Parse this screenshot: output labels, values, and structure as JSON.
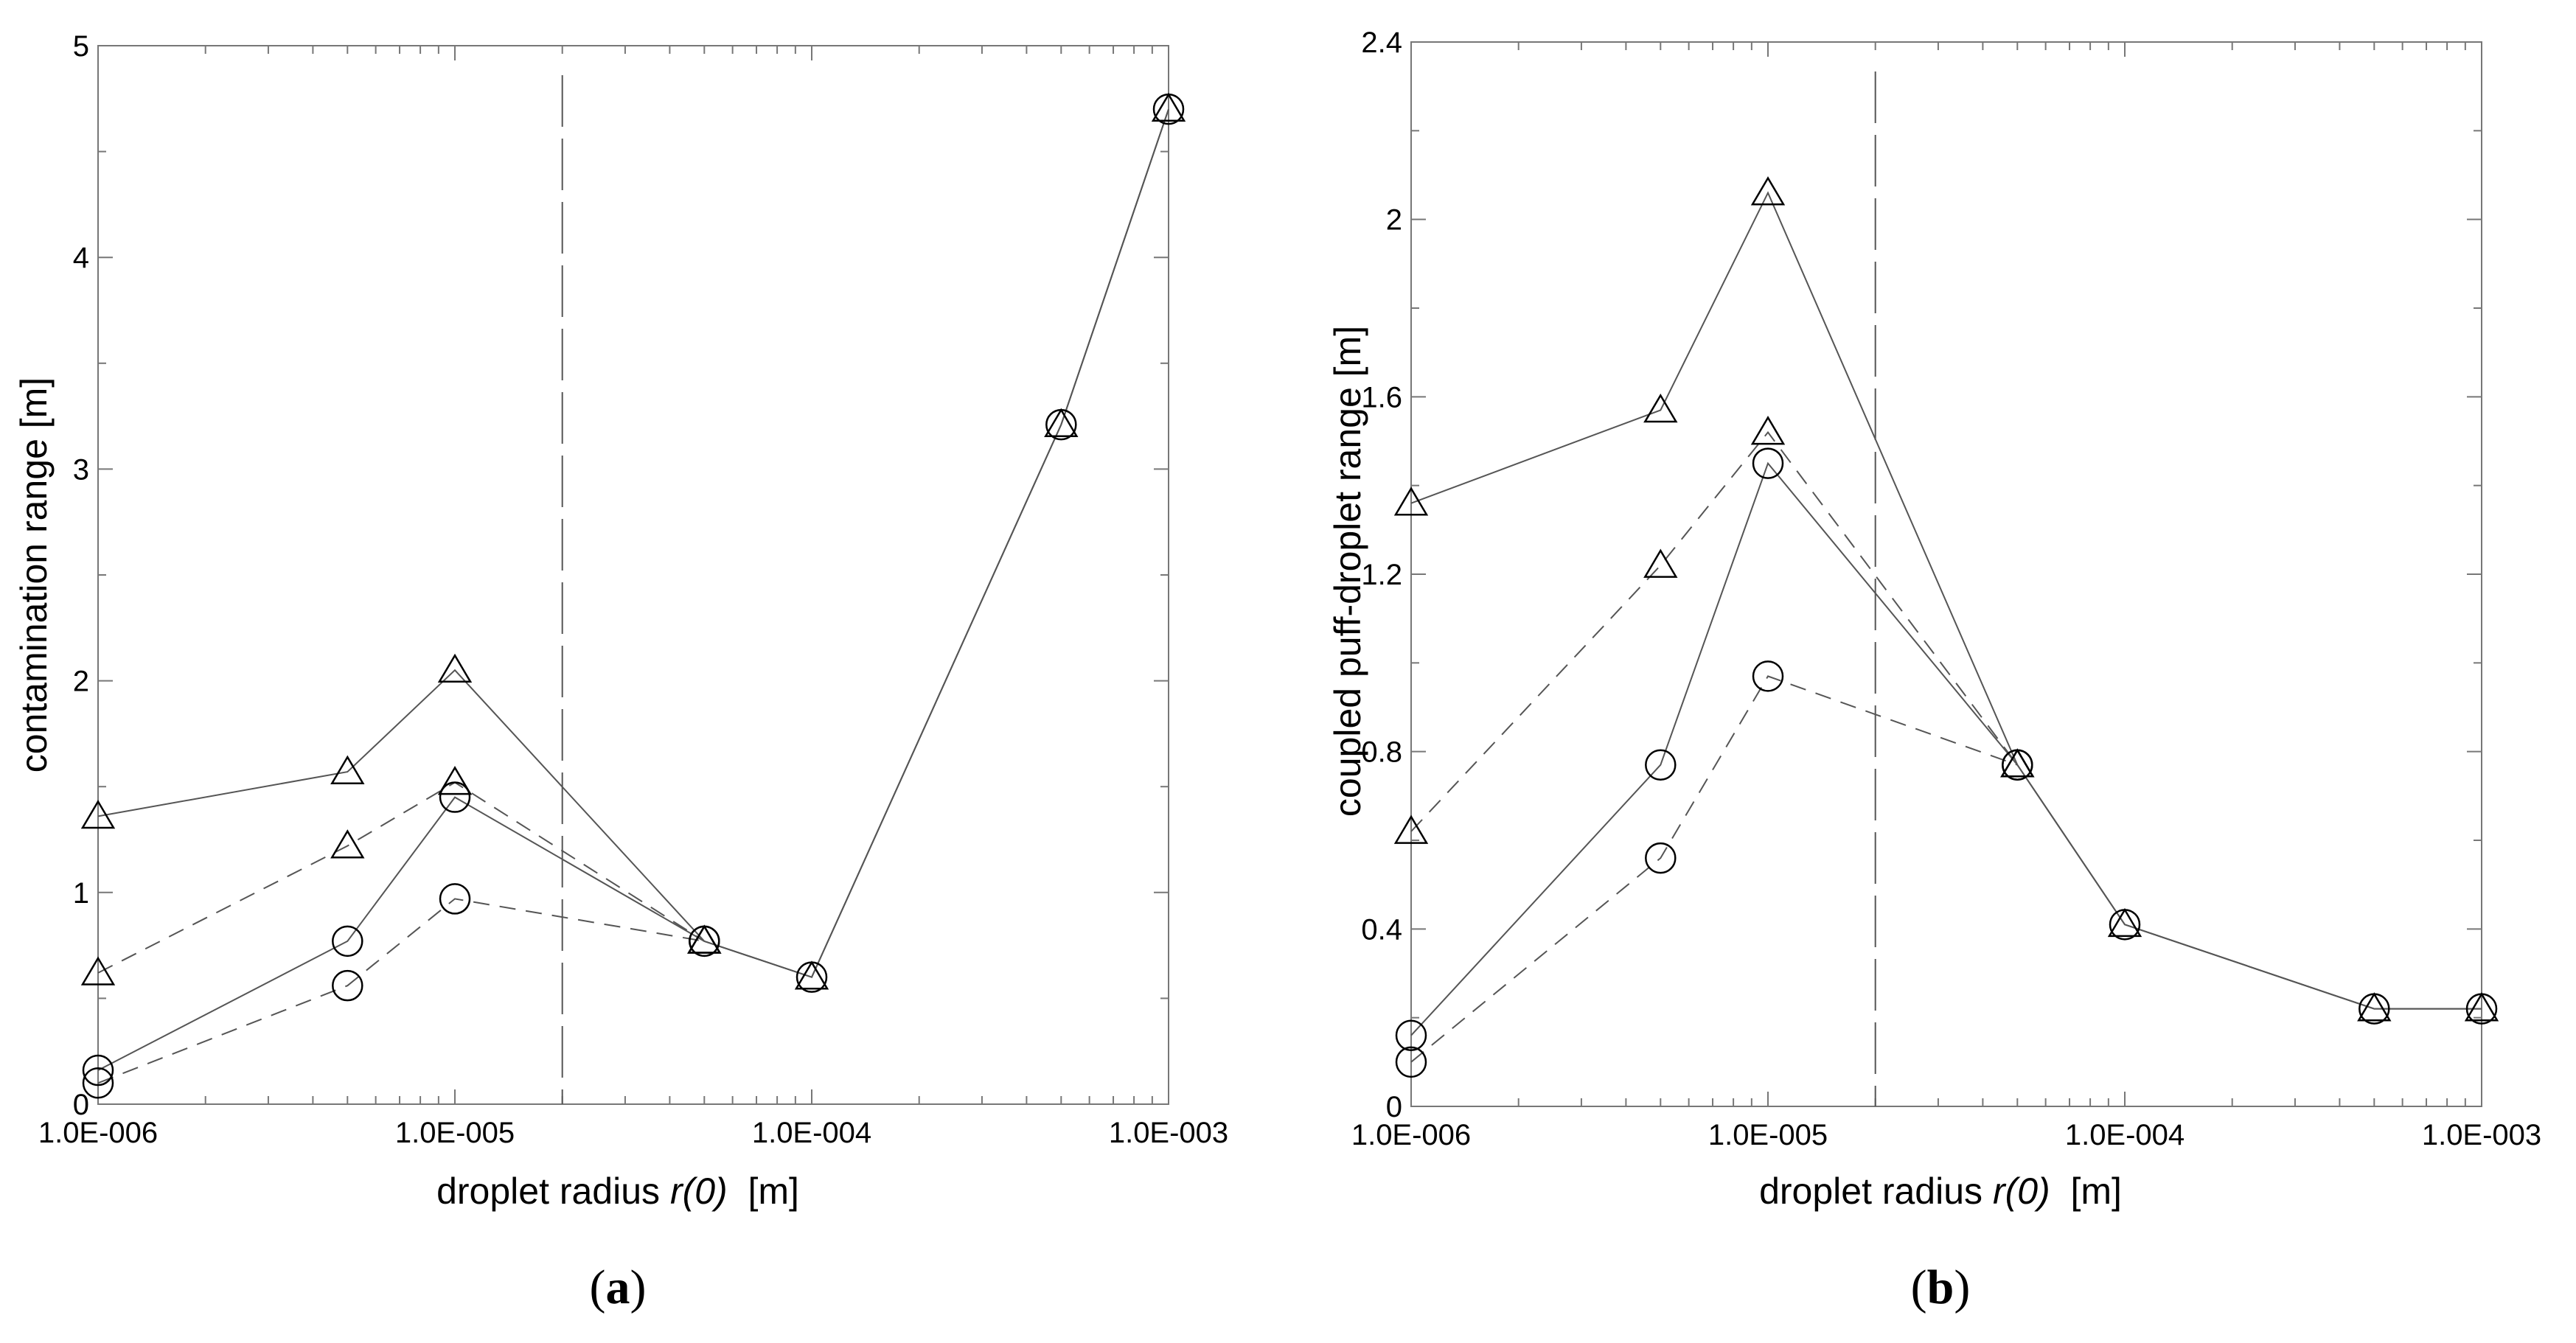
{
  "chart_data": [
    {
      "type": "line",
      "panel_label": "a",
      "xlabel_pre": "droplet radius ",
      "xlabel_var": "r(0)",
      "xlabel_unit": "  [m]",
      "ylabel": "contamination range [m]",
      "xscale": "log",
      "xlim": [
        1e-06,
        0.001
      ],
      "ylim": [
        0,
        5
      ],
      "x_tick_values": [
        1e-06,
        1e-05,
        0.0001,
        0.001
      ],
      "x_tick_labels": [
        "1.0E-006",
        "1.0E-005",
        "1.0E-004",
        "1.0E-003"
      ],
      "y_tick_values": [
        0,
        1,
        2,
        3,
        4,
        5
      ],
      "y_tick_labels": [
        "0",
        "1",
        "2",
        "3",
        "4",
        "5"
      ],
      "y_minor_step": 0.5,
      "vline_x": 2e-05,
      "grid": false,
      "series": [
        {
          "marker": "triangle",
          "style": "solid",
          "x": [
            1e-06,
            5e-06,
            1e-05,
            5e-05,
            0.0001,
            0.0005,
            0.001
          ],
          "y": [
            1.36,
            1.57,
            2.05,
            0.77,
            0.6,
            3.21,
            4.7
          ]
        },
        {
          "marker": "triangle",
          "style": "dashed",
          "x": [
            1e-06,
            5e-06,
            1e-05,
            5e-05
          ],
          "y": [
            0.62,
            1.22,
            1.52,
            0.77
          ]
        },
        {
          "marker": "circle",
          "style": "solid",
          "x": [
            1e-06,
            5e-06,
            1e-05,
            5e-05,
            0.0001,
            0.0005,
            0.001
          ],
          "y": [
            0.16,
            0.77,
            1.45,
            0.77,
            0.6,
            3.21,
            4.7
          ]
        },
        {
          "marker": "circle",
          "style": "dashed",
          "x": [
            1e-06,
            5e-06,
            1e-05,
            5e-05
          ],
          "y": [
            0.1,
            0.56,
            0.97,
            0.77
          ]
        }
      ]
    },
    {
      "type": "line",
      "panel_label": "b",
      "xlabel_pre": "droplet radius ",
      "xlabel_var": "r(0)",
      "xlabel_unit": "  [m]",
      "ylabel": "coupled puff-droplet range [m]",
      "xscale": "log",
      "xlim": [
        1e-06,
        0.001
      ],
      "ylim": [
        0,
        2.4
      ],
      "x_tick_values": [
        1e-06,
        1e-05,
        0.0001,
        0.001
      ],
      "x_tick_labels": [
        "1.0E-006",
        "1.0E-005",
        "1.0E-004",
        "1.0E-003"
      ],
      "y_tick_values": [
        0,
        0.4,
        0.8,
        1.2,
        1.6,
        2,
        2.4
      ],
      "y_tick_labels": [
        "0",
        "0.4",
        "0.8",
        "1.2",
        "1.6",
        "2",
        "2.4"
      ],
      "y_minor_step": 0.2,
      "vline_x": 2e-05,
      "grid": false,
      "series": [
        {
          "marker": "triangle",
          "style": "solid",
          "x": [
            1e-06,
            5e-06,
            1e-05,
            5e-05,
            0.0001,
            0.0005,
            0.001
          ],
          "y": [
            1.36,
            1.57,
            2.06,
            0.77,
            0.41,
            0.22,
            0.22
          ]
        },
        {
          "marker": "triangle",
          "style": "dashed",
          "x": [
            1e-06,
            5e-06,
            1e-05,
            5e-05
          ],
          "y": [
            0.62,
            1.22,
            1.52,
            0.77
          ]
        },
        {
          "marker": "circle",
          "style": "solid",
          "x": [
            1e-06,
            5e-06,
            1e-05,
            5e-05,
            0.0001,
            0.0005,
            0.001
          ],
          "y": [
            0.16,
            0.77,
            1.45,
            0.77,
            0.41,
            0.22,
            0.22
          ]
        },
        {
          "marker": "circle",
          "style": "dashed",
          "x": [
            1e-06,
            5e-06,
            1e-05,
            5e-05
          ],
          "y": [
            0.1,
            0.56,
            0.97,
            0.77
          ]
        }
      ]
    }
  ]
}
